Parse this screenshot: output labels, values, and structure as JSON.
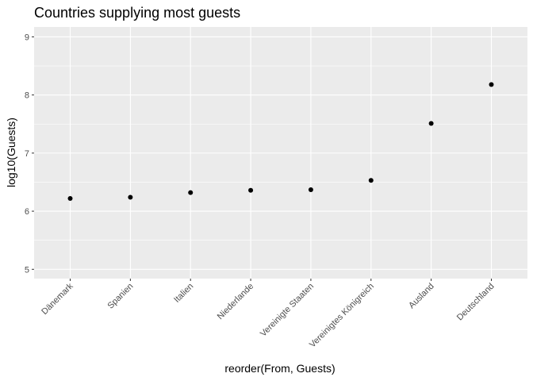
{
  "chart_data": {
    "type": "scatter",
    "title": "Countries supplying most guests",
    "xlabel": "reorder(From, Guests)",
    "ylabel": "log10(Guests)",
    "categories": [
      "Dänemark",
      "Spanien",
      "Italien",
      "Niederlande",
      "Vereinigte Staaten",
      "Vereinigtes Königreich",
      "Ausland",
      "Deutschland"
    ],
    "values": [
      6.22,
      6.24,
      6.32,
      6.36,
      6.37,
      6.53,
      7.51,
      8.18
    ],
    "ylim": [
      4.84,
      9.17
    ],
    "yticks": [
      5,
      6,
      7,
      8,
      9
    ],
    "grid": true,
    "colors": {
      "panel": "#ebebeb",
      "grid": "#ffffff",
      "point": "#000000"
    }
  }
}
